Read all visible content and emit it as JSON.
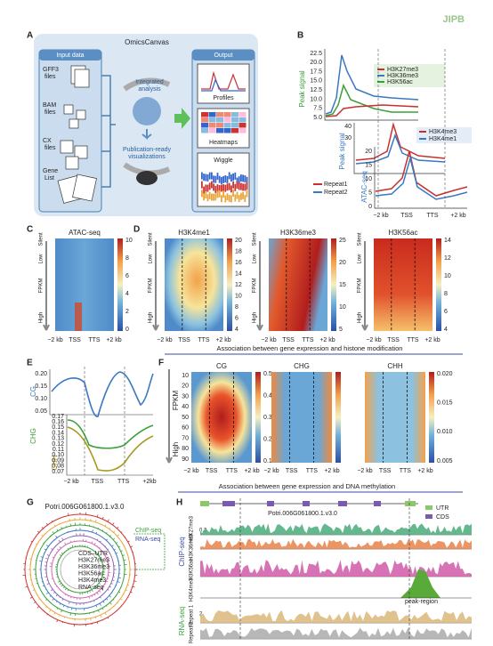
{
  "logo": "JIPB",
  "panel_a": {
    "letter": "A",
    "title": "OmicsCanvas",
    "input_title": "Input data",
    "inputs": [
      [
        "GFF3",
        "files"
      ],
      [
        "BAM",
        "files"
      ],
      [
        "CX",
        "files"
      ],
      [
        "Gene",
        "List"
      ]
    ],
    "integrated": [
      "Integrated",
      "analysis"
    ],
    "publication": [
      "Publication-ready",
      "visualizations"
    ],
    "output_title": "Output",
    "outputs": [
      "Profiles",
      "Heatmaps",
      "Wiggle"
    ]
  },
  "panel_b": {
    "letter": "B",
    "ylabel1": "Peak signal",
    "yticks1": [
      "22.5",
      "20.0",
      "17.5",
      "15.0",
      "12.5",
      "10.0",
      "7.5",
      "5.0"
    ],
    "legend1": [
      "H3K27me3",
      "H3K36me3",
      "H3K56ac"
    ],
    "ylabel2": "Peak signal",
    "yticks2": [
      "40",
      "30"
    ],
    "yticks3": [
      "20",
      "15",
      "10",
      "5",
      "0"
    ],
    "legend2": [
      "H3K4me3",
      "H3K4me1"
    ],
    "ylabel3": "ATAC-seq",
    "legend3": [
      "Repeat1",
      "Repeat2"
    ],
    "xticks": [
      "−2 kb",
      "TSS",
      "TTS",
      "+2 kb"
    ]
  },
  "panel_c": {
    "letter": "C",
    "title": "ATAC-seq",
    "colorbar": [
      "10",
      "8",
      "6",
      "4",
      "2",
      "0"
    ],
    "rows": [
      "Silent",
      "Low",
      "FPKM",
      "High"
    ],
    "xticks": [
      "−2 kb",
      "TSS",
      "TTS",
      "+2 kb"
    ]
  },
  "panel_d": {
    "letter": "D",
    "maps": [
      {
        "title": "H3K4me1",
        "colorbar": [
          "20",
          "18",
          "16",
          "14",
          "12",
          "10",
          "8",
          "6",
          "4"
        ]
      },
      {
        "title": "H3K36me3",
        "colorbar": [
          "25",
          "20",
          "15",
          "10",
          "5"
        ]
      },
      {
        "title": "H3K56ac",
        "colorbar": [
          "14",
          "12",
          "10",
          "8",
          "6",
          "4"
        ]
      }
    ],
    "rows": [
      "Silent",
      "Low",
      "FPKM",
      "High"
    ],
    "xticks": [
      "−2 kb",
      "TSS",
      "TTS",
      "+2 kb"
    ],
    "caption": "Association between gene expression and histone modification"
  },
  "panel_e": {
    "letter": "E",
    "labels": [
      "CG",
      "CHG",
      "CHH"
    ],
    "cg_ticks": [
      "0.20",
      "0.15",
      "0.10",
      "0.05"
    ],
    "chg_ticks": [
      "0.17",
      "0.16",
      "0.15",
      "0.14",
      "0.13",
      "0.12",
      "0.11",
      "0.10",
      "0.09",
      "0.08",
      "0.07"
    ],
    "xticks": [
      "−2 kb",
      "TSS",
      "TTS",
      "+2kb"
    ]
  },
  "panel_f": {
    "letter": "F",
    "maps": [
      {
        "title": "CG",
        "colorbar": [
          "0.5",
          "0.4",
          "0.3",
          "0.2",
          "0.1"
        ]
      },
      {
        "title": "CHG",
        "colorbar": []
      },
      {
        "title": "CHH",
        "colorbar": [
          "0.020",
          "0.015",
          "0.010",
          "0.005"
        ]
      }
    ],
    "ylabel": "FPKM",
    "yticks": [
      "10",
      "20",
      "30",
      "40",
      "50",
      "60",
      "70",
      "80",
      "90"
    ],
    "high": "High",
    "xticks": [
      "−2 kb",
      "TSS",
      "TTS",
      "+2 kb"
    ],
    "caption": "Association between gene expression and DNA methylation"
  },
  "panel_g": {
    "letter": "G",
    "title": "Potri.006G061800.1.v3.0",
    "chip": "ChIP-seq",
    "rna": "RNA-seq",
    "rings": [
      "CDS–UTR",
      "H3K27me3",
      "H3K36me3",
      "H3K56ac",
      "H3K4me3",
      "RNA-seq"
    ]
  },
  "panel_h": {
    "letter": "H",
    "title": "Potri.006G061800.1.v3.0",
    "legend": [
      "UTR",
      "CDS"
    ],
    "chip": "ChIP-seq",
    "tracks": [
      "H3K27me3",
      "H3K36me3",
      "H3K56ac",
      "H3K4me3"
    ],
    "peak": "peak-region",
    "rna": "RNA-seq",
    "repeats": [
      "Repeat 1",
      "Repeat 2"
    ],
    "ticks": [
      "0.2",
      "2"
    ]
  }
}
